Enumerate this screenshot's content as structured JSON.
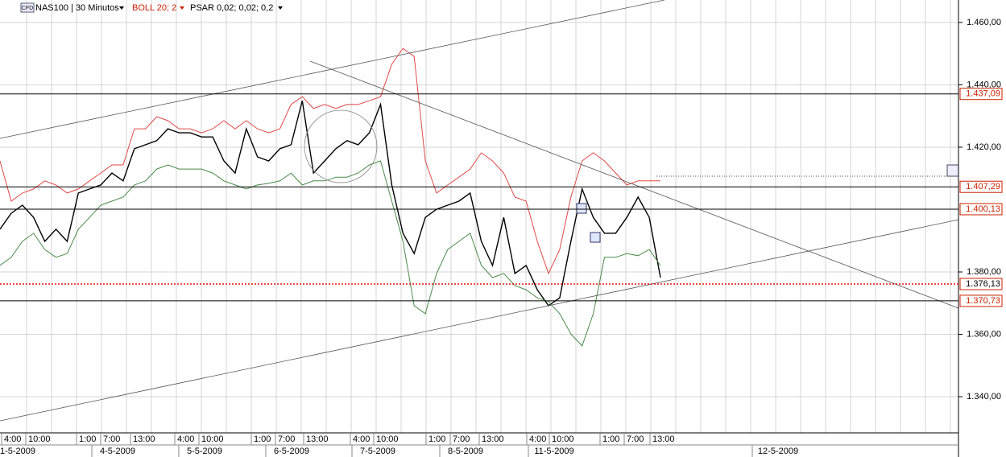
{
  "chart_data": {
    "type": "line",
    "instrument": "NAS100 | 30 Minutos",
    "instrument_badge": "CFD",
    "indicators": [
      "BOLL 20; 2",
      "PSAR 0,02; 0,02; 0,2"
    ],
    "ylim": [
      1328.4,
      1467.2
    ],
    "yticks": [
      {
        "value": 1460,
        "label": "1.460,00"
      },
      {
        "value": 1440,
        "label": "1.440,00"
      },
      {
        "value": 1420,
        "label": "1.420,00"
      },
      {
        "value": 1380,
        "label": "1.380,00"
      },
      {
        "value": 1360,
        "label": "1.360,00"
      },
      {
        "value": 1340,
        "label": "1.340,00"
      }
    ],
    "levels": [
      {
        "value": 1437.09,
        "label": "1.437,09",
        "color": "#000000",
        "text_color": "#cc2200",
        "dashed": false
      },
      {
        "value": 1407.29,
        "label": "1.407,29",
        "color": "#000000",
        "text_color": "#cc2200",
        "dashed": false
      },
      {
        "value": 1400.13,
        "label": "1.400,13",
        "color": "#000000",
        "text_color": "#cc2200",
        "dashed": false
      },
      {
        "value": 1376.13,
        "label": "1.376,13",
        "color": "#dd1111",
        "text_color": "#000000",
        "dashed": true
      },
      {
        "value": 1370.73,
        "label": "1.370,73",
        "color": "#000000",
        "text_color": "#cc2200",
        "dashed": false
      }
    ],
    "time_labels": [
      "4:00",
      "10:00",
      "1:00",
      "7:00",
      "13:00",
      "4:00",
      "10:00",
      "1:00",
      "7:00",
      "13:00",
      "4:00",
      "10:00",
      "1:00",
      "7:00",
      "13:00",
      "4:00",
      "10:00",
      "1:00",
      "7:00",
      "13:00"
    ],
    "date_labels": [
      "1-5-2009",
      "4-5-2009",
      "5-5-2009",
      "6-5-2009",
      "7-5-2009",
      "8-5-2009",
      "11-5-2009",
      "12-5-2009"
    ],
    "series": [
      {
        "name": "Price",
        "color": "#000000",
        "values": [
          1393.7,
          1398.8,
          1401.4,
          1397.5,
          1389.8,
          1393.7,
          1389.8,
          1405.3,
          1406.6,
          1407.9,
          1411.7,
          1409.2,
          1419.5,
          1420.8,
          1422.1,
          1425.9,
          1424.6,
          1424.6,
          1423.3,
          1423.3,
          1415.6,
          1411.7,
          1425.9,
          1416.9,
          1415.6,
          1419.5,
          1420.8,
          1434.9,
          1411.7,
          1415.6,
          1419.5,
          1422.1,
          1420.8,
          1424.6,
          1433.7,
          1407.9,
          1392.4,
          1385.9,
          1397.5,
          1400.1,
          1401.4,
          1402.7,
          1405.3,
          1389.8,
          1382.1,
          1397.5,
          1379.5,
          1382.1,
          1374.3,
          1369.2,
          1371.7,
          1389.8,
          1406.6,
          1397.5,
          1392.4,
          1392.4,
          1397.5,
          1404.0,
          1397.5,
          1378.2
        ]
      },
      {
        "name": "BOLL upper",
        "color": "#e04848",
        "values": [
          1415.6,
          1402.7,
          1405.3,
          1406.6,
          1409.2,
          1407.9,
          1405.3,
          1406.6,
          1409.2,
          1411.7,
          1414.3,
          1414.3,
          1425.9,
          1425.9,
          1429.8,
          1428.5,
          1425.9,
          1425.9,
          1424.6,
          1425.9,
          1428.5,
          1425.9,
          1428.5,
          1425.9,
          1424.6,
          1425.9,
          1433.7,
          1436.2,
          1432.4,
          1433.7,
          1432.4,
          1433.7,
          1433.7,
          1434.9,
          1436.2,
          1446.6,
          1451.7,
          1449.1,
          1415.6,
          1405.3,
          1407.9,
          1410.4,
          1413.0,
          1418.2,
          1415.6,
          1411.7,
          1404.0,
          1402.7,
          1389.8,
          1379.5,
          1387.2,
          1404.0,
          1415.6,
          1418.2,
          1415.6,
          1411.7,
          1407.9,
          1409.2,
          1409.2,
          1409.2
        ]
      },
      {
        "name": "BOLL lower",
        "color": "#4a8a4a",
        "values": [
          1382.1,
          1384.7,
          1389.8,
          1392.4,
          1387.2,
          1384.7,
          1385.9,
          1393.7,
          1397.5,
          1401.4,
          1402.7,
          1404.0,
          1407.9,
          1409.2,
          1413.0,
          1414.3,
          1413.0,
          1413.0,
          1413.0,
          1411.7,
          1409.2,
          1407.9,
          1406.6,
          1407.9,
          1408.4,
          1409.2,
          1411.7,
          1407.9,
          1409.2,
          1409.2,
          1410.4,
          1410.4,
          1411.7,
          1414.3,
          1415.6,
          1402.7,
          1389.8,
          1369.2,
          1366.6,
          1379.5,
          1387.2,
          1389.8,
          1392.4,
          1382.1,
          1378.2,
          1379.5,
          1375.6,
          1374.3,
          1371.7,
          1370.5,
          1366.6,
          1360.1,
          1356.3,
          1366.6,
          1384.7,
          1384.7,
          1385.9,
          1385.2,
          1387.2,
          1382.1
        ]
      }
    ]
  }
}
